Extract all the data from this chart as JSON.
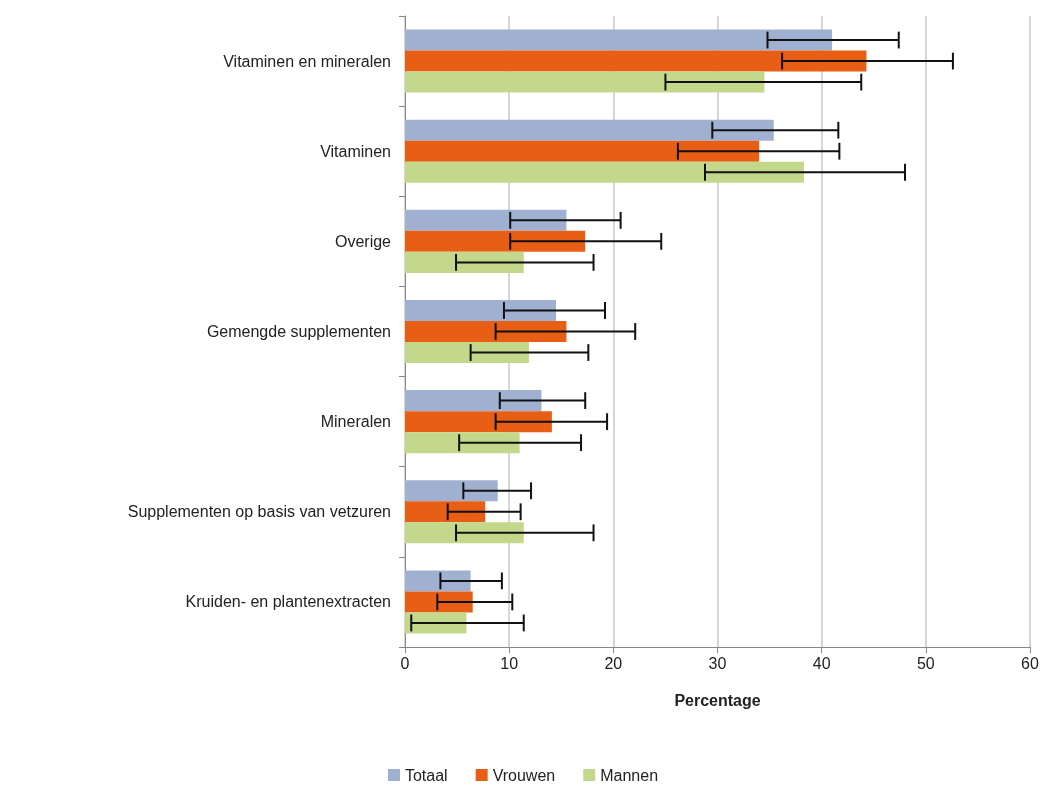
{
  "chart_data": {
    "type": "bar",
    "orientation": "horizontal",
    "xlabel": "Percentage",
    "categories": [
      "Vitaminen en mineralen",
      "Vitaminen",
      "Overige",
      "Gemengde supplementen",
      "Mineralen",
      "Supplementen op basis van vetzuren",
      "Kruiden- en plantenextracten"
    ],
    "series": [
      {
        "name": "Totaal",
        "color": "#9fb0d0",
        "values": [
          41.0,
          35.4,
          15.5,
          14.5,
          13.1,
          8.9,
          6.3
        ],
        "errors": [
          [
            34.8,
            47.4
          ],
          [
            29.5,
            41.6
          ],
          [
            10.1,
            20.7
          ],
          [
            9.5,
            19.2
          ],
          [
            9.1,
            17.3
          ],
          [
            5.6,
            12.1
          ],
          [
            3.4,
            9.3
          ]
        ]
      },
      {
        "name": "Vrouwen",
        "color": "#e85e14",
        "values": [
          44.3,
          34.0,
          17.3,
          15.5,
          14.1,
          7.7,
          6.5
        ],
        "errors": [
          [
            36.2,
            52.6
          ],
          [
            26.2,
            41.7
          ],
          [
            10.1,
            24.6
          ],
          [
            8.7,
            22.1
          ],
          [
            8.7,
            19.4
          ],
          [
            4.1,
            11.1
          ],
          [
            3.1,
            10.3
          ]
        ]
      },
      {
        "name": "Mannen",
        "color": "#c3d88a",
        "values": [
          34.5,
          38.3,
          11.4,
          11.9,
          11.0,
          11.4,
          5.9
        ],
        "errors": [
          [
            25.0,
            43.8
          ],
          [
            28.8,
            48.0
          ],
          [
            4.9,
            18.1
          ],
          [
            6.3,
            17.6
          ],
          [
            5.2,
            16.9
          ],
          [
            4.9,
            18.1
          ],
          [
            0.6,
            11.4
          ]
        ]
      }
    ],
    "xlim": [
      0,
      60
    ],
    "xticks": [
      0,
      10,
      20,
      30,
      40,
      50,
      60
    ],
    "grid": "x",
    "legend": "bottom"
  }
}
